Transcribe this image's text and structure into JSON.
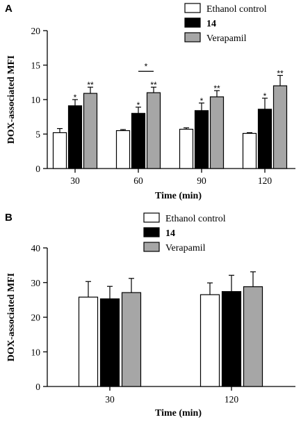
{
  "chart_data": [
    {
      "panel": "A",
      "type": "bar",
      "categories": [
        "30",
        "60",
        "90",
        "120"
      ],
      "xlabel": "Time (min)",
      "ylabel": "DOX-associated MFI",
      "ylim": [
        0,
        20
      ],
      "yticks": [
        "0",
        "5",
        "10",
        "15",
        "20"
      ],
      "grid": false,
      "legend_position": "top-right",
      "series": [
        {
          "name": "Ethanol control",
          "color": "#ffffff",
          "label_bold": false,
          "values": [
            5.2,
            5.5,
            5.7,
            5.1
          ],
          "errors": [
            0.6,
            0.15,
            0.2,
            0.1
          ],
          "sig": [
            "",
            "",
            "",
            ""
          ]
        },
        {
          "name": "14",
          "color": "#000000",
          "label_bold": true,
          "values": [
            9.1,
            8.0,
            8.4,
            8.6
          ],
          "errors": [
            0.9,
            0.9,
            1.1,
            1.6
          ],
          "sig": [
            "*",
            "*",
            "*",
            "*"
          ]
        },
        {
          "name": "Verapamil",
          "color": "#a6a6a6",
          "label_bold": false,
          "values": [
            10.9,
            11.0,
            10.4,
            12.0
          ],
          "errors": [
            0.9,
            0.8,
            0.9,
            1.5
          ],
          "sig": [
            "**",
            "**",
            "**",
            "**"
          ]
        }
      ],
      "brackets": [
        {
          "category": "60",
          "from_series": 1,
          "to_series": 2,
          "label": "*",
          "at_value": 14.1
        }
      ]
    },
    {
      "panel": "B",
      "type": "bar",
      "categories": [
        "30",
        "120"
      ],
      "xlabel": "Time (min)",
      "ylabel": "DOX-associated MFI",
      "ylim": [
        0,
        40
      ],
      "yticks": [
        "0",
        "10",
        "20",
        "30",
        "40"
      ],
      "grid": false,
      "legend_position": "top-right",
      "series": [
        {
          "name": "Ethanol control",
          "color": "#ffffff",
          "label_bold": false,
          "values": [
            25.8,
            26.5
          ],
          "errors": [
            4.5,
            3.4
          ],
          "sig": [
            "",
            ""
          ]
        },
        {
          "name": "14",
          "color": "#000000",
          "label_bold": true,
          "values": [
            25.3,
            27.4
          ],
          "errors": [
            3.6,
            4.7
          ],
          "sig": [
            "",
            ""
          ]
        },
        {
          "name": "Verapamil",
          "color": "#a6a6a6",
          "label_bold": false,
          "values": [
            27.1,
            28.8
          ],
          "errors": [
            4.1,
            4.3
          ],
          "sig": [
            "",
            ""
          ]
        }
      ],
      "brackets": []
    }
  ]
}
